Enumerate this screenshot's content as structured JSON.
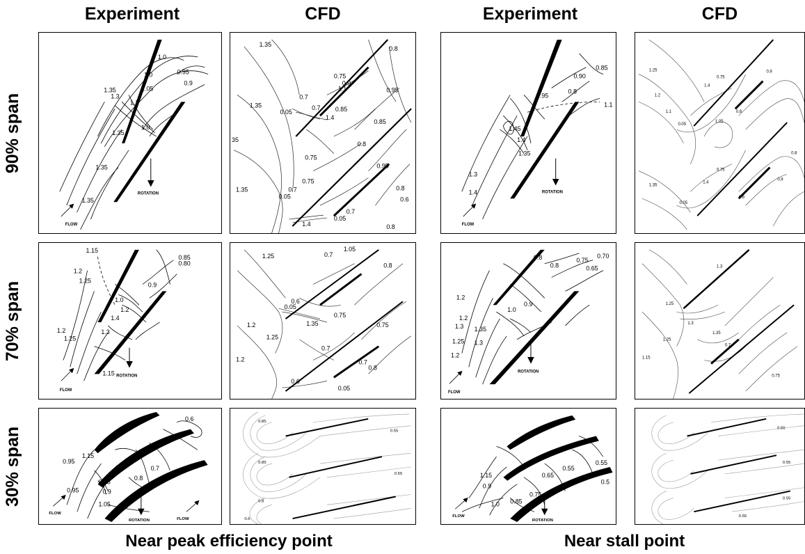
{
  "columns": [
    "Experiment",
    "CFD",
    "Experiment",
    "CFD"
  ],
  "rows": [
    "90% span",
    "70% span",
    "30% span"
  ],
  "footers": [
    "Near peak efficiency point",
    "Near stall point"
  ],
  "annotations": {
    "rotation": "ROTATION",
    "flow": "FLOW"
  },
  "panels": {
    "e90a": [
      "1.0",
      "0.95",
      "0.9",
      "1.05",
      "1.0",
      "1.35",
      "1.3",
      "1.2",
      "1.0",
      "1.35",
      "1.35",
      "1.35"
    ],
    "c90a": [
      "1.35",
      "0.8",
      "0.75",
      "0.7",
      "0.05",
      "0.7",
      "1.4",
      "0.85",
      "1.1",
      "0.9",
      "0.95",
      "1.35",
      "0.85",
      "0.8",
      "0.75",
      "0.95",
      "0.8",
      "0.6",
      "1.35",
      "0.05",
      "0.7",
      "0.75",
      "1.4",
      "0.05",
      "0.7",
      "0.8",
      "35"
    ],
    "e90b": [
      "0.85",
      "0.90",
      "0.8",
      "0.95",
      "1.1",
      "1.45",
      "1.4",
      "1.35",
      "1.3",
      "1.4"
    ],
    "c90b": [
      "1.25",
      "1.2",
      "1.1",
      "0.05",
      "1.05",
      "1.4",
      "0.75",
      "0.8",
      "0.9",
      "1.35",
      "0.05",
      "1.4",
      "0.75",
      "0.8",
      "0.9",
      "0.8"
    ],
    "e70a": [
      "1.15",
      "0.85",
      "0.80",
      "1.2",
      "1.25",
      "0.9",
      "1.0",
      "1.2",
      "1.2",
      "1.25",
      "1.3",
      "1.4",
      "1.15"
    ],
    "c70a": [
      "1.25",
      "0.7",
      "1.05",
      "0.8",
      "0.05",
      "0.6",
      "1.35",
      "0.75",
      "1.2",
      "1.25",
      "0.7",
      "0.75",
      "1.2",
      "0.6",
      "0.7",
      "0.8",
      "0.05"
    ],
    "e70b": [
      "0.8",
      "0.8",
      "0.75",
      "0.70",
      "0.65",
      "1.2",
      "1.2",
      "1.0",
      "0.9",
      "1.3",
      "1.35",
      "1.3",
      "1.25",
      "1.2"
    ],
    "c70b": [
      "1.3",
      "1.25",
      "1.3",
      "1.35",
      "0.7",
      "1.15",
      "1.25",
      "0.75"
    ],
    "e30a": [
      "0.6",
      "1.15",
      "0.95",
      "0.85",
      "0.9",
      "0.8",
      "0.7",
      "0.95",
      "1.05"
    ],
    "c30a": [
      "0.85",
      "0.55",
      "0.85",
      "0.55",
      "0.8",
      "0.6"
    ],
    "e30b": [
      "1.15",
      "0.9",
      "0.65",
      "0.55",
      "0.55",
      "0.5",
      "1.0",
      "0.85",
      "0.75"
    ],
    "c30b": [
      "0.55",
      "0.55",
      "0.55",
      "0.55"
    ]
  }
}
